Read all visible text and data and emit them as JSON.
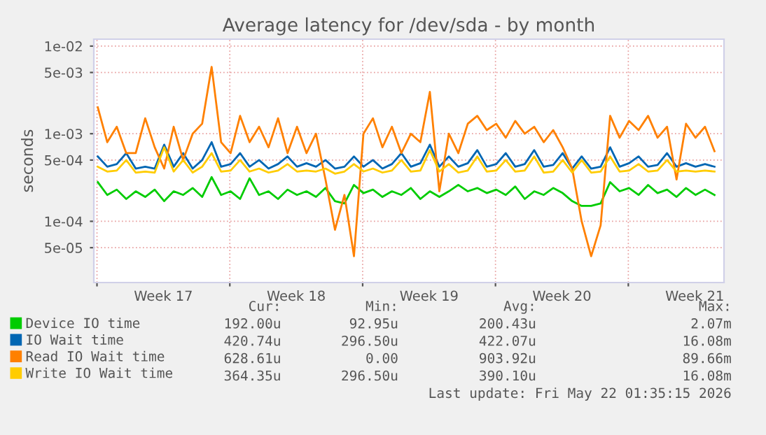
{
  "chart_data": {
    "type": "line",
    "title": "Average latency for /dev/sda - by month",
    "ylabel": "seconds",
    "x": [
      "2026-04-20T01:00",
      "2026-04-20T13:00",
      "2026-04-21T01:00",
      "2026-04-21T13:00",
      "2026-04-22T01:00",
      "2026-04-22T13:00",
      "2026-04-23T01:00",
      "2026-04-23T13:00",
      "2026-04-24T01:00",
      "2026-04-24T13:00",
      "2026-04-25T01:00",
      "2026-04-25T13:00",
      "2026-04-26T01:00",
      "2026-04-26T13:00",
      "2026-04-27T01:00",
      "2026-04-27T13:00",
      "2026-04-28T01:00",
      "2026-04-28T13:00",
      "2026-04-29T01:00",
      "2026-04-29T13:00",
      "2026-04-30T01:00",
      "2026-04-30T13:00",
      "2026-05-01T01:00",
      "2026-05-01T13:00",
      "2026-05-02T01:00",
      "2026-05-02T13:00",
      "2026-05-03T01:00",
      "2026-05-03T13:00",
      "2026-05-04T01:00",
      "2026-05-04T13:00",
      "2026-05-05T01:00",
      "2026-05-05T13:00",
      "2026-05-06T01:00",
      "2026-05-06T13:00",
      "2026-05-07T01:00",
      "2026-05-07T13:00",
      "2026-05-08T01:00",
      "2026-05-08T13:00",
      "2026-05-09T01:00",
      "2026-05-09T13:00",
      "2026-05-10T01:00",
      "2026-05-10T13:00",
      "2026-05-11T01:00",
      "2026-05-11T13:00",
      "2026-05-12T01:00",
      "2026-05-12T13:00",
      "2026-05-13T01:00",
      "2026-05-13T13:00",
      "2026-05-14T01:00",
      "2026-05-14T13:00",
      "2026-05-15T01:00",
      "2026-05-15T13:00",
      "2026-05-16T01:00",
      "2026-05-16T13:00",
      "2026-05-17T01:00",
      "2026-05-17T13:00",
      "2026-05-18T01:00",
      "2026-05-18T13:00",
      "2026-05-19T01:00",
      "2026-05-19T13:00",
      "2026-05-20T01:00",
      "2026-05-20T13:00",
      "2026-05-21T01:00",
      "2026-05-21T13:00",
      "2026-05-22T01:00",
      "2026-05-22T13:00"
    ],
    "series": [
      {
        "name": "Device IO time",
        "color": "#00cc00",
        "values": [
          0.00028,
          0.0002,
          0.00023,
          0.00018,
          0.00022,
          0.00019,
          0.00023,
          0.00017,
          0.00022,
          0.0002,
          0.00024,
          0.00019,
          0.00032,
          0.0002,
          0.00022,
          0.00018,
          0.00031,
          0.0002,
          0.00022,
          0.00018,
          0.00023,
          0.0002,
          0.00022,
          0.00019,
          0.00024,
          0.00017,
          0.00016,
          0.00026,
          0.00021,
          0.00023,
          0.00019,
          0.00022,
          0.0002,
          0.00024,
          0.00018,
          0.00022,
          0.00019,
          0.00022,
          0.00026,
          0.00022,
          0.00024,
          0.00021,
          0.00023,
          0.0002,
          0.00025,
          0.00018,
          0.00022,
          0.0002,
          0.00024,
          0.00021,
          0.00017,
          0.00015,
          0.00015,
          0.00016,
          0.00028,
          0.00022,
          0.00024,
          0.0002,
          0.00026,
          0.00021,
          0.00023,
          0.00019,
          0.00024,
          0.0002,
          0.00023,
          0.0002
        ]
      },
      {
        "name": "IO Wait time",
        "color": "#0066b3",
        "values": [
          0.00055,
          0.00042,
          0.00045,
          0.0006,
          0.0004,
          0.00042,
          0.0004,
          0.00075,
          0.00042,
          0.0006,
          0.0004,
          0.0005,
          0.0008,
          0.00042,
          0.00045,
          0.0006,
          0.00042,
          0.0005,
          0.0004,
          0.00045,
          0.00055,
          0.00042,
          0.00046,
          0.00042,
          0.0005,
          0.0004,
          0.00042,
          0.00055,
          0.00042,
          0.0005,
          0.0004,
          0.00045,
          0.0006,
          0.00042,
          0.00046,
          0.00075,
          0.00042,
          0.00055,
          0.00042,
          0.00046,
          0.00065,
          0.00042,
          0.00045,
          0.0006,
          0.00042,
          0.00045,
          0.00065,
          0.00042,
          0.00044,
          0.0006,
          0.0004,
          0.00055,
          0.0004,
          0.00042,
          0.0007,
          0.00042,
          0.00046,
          0.00055,
          0.00042,
          0.00044,
          0.0006,
          0.00042,
          0.00046,
          0.00042,
          0.00045,
          0.00042
        ]
      },
      {
        "name": "Read IO Wait time",
        "color": "#ff8000",
        "values": [
          0.002,
          0.0008,
          0.0012,
          0.0006,
          0.0006,
          0.0015,
          0.0007,
          0.0004,
          0.0012,
          0.0005,
          0.001,
          0.0013,
          0.0058,
          0.0008,
          0.0006,
          0.0016,
          0.0008,
          0.0012,
          0.0007,
          0.0015,
          0.0006,
          0.0012,
          0.0006,
          0.001,
          0.0003,
          8e-05,
          0.0002,
          4e-05,
          0.001,
          0.0015,
          0.0007,
          0.0012,
          0.0006,
          0.001,
          0.0008,
          0.003,
          0.00022,
          0.001,
          0.0006,
          0.0013,
          0.0016,
          0.0011,
          0.0013,
          0.0009,
          0.0014,
          0.001,
          0.0012,
          0.0008,
          0.0011,
          0.0007,
          0.0004,
          0.0001,
          4e-05,
          9e-05,
          0.0016,
          0.0009,
          0.0014,
          0.0011,
          0.0016,
          0.0009,
          0.0012,
          0.0003,
          0.0013,
          0.0009,
          0.0012,
          0.00063
        ]
      },
      {
        "name": "Write IO Wait time",
        "color": "#ffcc00",
        "values": [
          0.00042,
          0.00037,
          0.00038,
          0.0005,
          0.00036,
          0.00037,
          0.00036,
          0.0007,
          0.00037,
          0.0005,
          0.00036,
          0.00042,
          0.0006,
          0.00037,
          0.00038,
          0.0005,
          0.00037,
          0.0004,
          0.00036,
          0.00038,
          0.00045,
          0.00037,
          0.00038,
          0.00037,
          0.0004,
          0.00035,
          0.00037,
          0.00045,
          0.00037,
          0.0004,
          0.00036,
          0.00038,
          0.0005,
          0.00037,
          0.00038,
          0.00065,
          0.00037,
          0.00045,
          0.00036,
          0.00038,
          0.00055,
          0.00037,
          0.00038,
          0.0005,
          0.00037,
          0.00038,
          0.00055,
          0.00036,
          0.00037,
          0.0005,
          0.00036,
          0.0005,
          0.00036,
          0.00037,
          0.00055,
          0.00037,
          0.00038,
          0.00045,
          0.00037,
          0.00038,
          0.0005,
          0.00037,
          0.00038,
          0.00037,
          0.00038,
          0.00037
        ]
      }
    ],
    "log": "y",
    "xlim": [
      "2026-04-19T20:00",
      "2026-05-23T01:00"
    ],
    "ylim": [
      2e-05,
      0.012
    ],
    "xticks": [
      {
        "value": "2026-04-20",
        "label": null
      },
      {
        "value": "2026-04-23T12:00",
        "label": "Week 17"
      },
      {
        "value": "2026-04-27",
        "label": null
      },
      {
        "value": "2026-04-30T12:00",
        "label": "Week 18"
      },
      {
        "value": "2026-05-04",
        "label": null
      },
      {
        "value": "2026-05-07T12:00",
        "label": "Week 19"
      },
      {
        "value": "2026-05-11",
        "label": null
      },
      {
        "value": "2026-05-14T12:00",
        "label": "Week 20"
      },
      {
        "value": "2026-05-18",
        "label": null
      },
      {
        "value": "2026-05-21T12:00",
        "label": "Week 21"
      }
    ],
    "yticks": [
      {
        "value": 5e-05,
        "label": "5e-05"
      },
      {
        "value": 0.0001,
        "label": "1e-04"
      },
      {
        "value": 0.0005,
        "label": "5e-04"
      },
      {
        "value": 0.001,
        "label": "1e-03"
      },
      {
        "value": 0.005,
        "label": "5e-03"
      },
      {
        "value": 0.01,
        "label": "1e-02"
      }
    ],
    "grid": true,
    "legend": "bottom",
    "marker": "none",
    "line_style": "solid",
    "annotations": [
      "Cur:",
      "Min:",
      "Avg:",
      "Max:",
      "192.00u",
      "92.95u",
      "200.43u",
      "2.07m",
      "420.74u",
      "296.50u",
      "422.07u",
      "16.08m",
      "628.61u",
      "0.00",
      "903.92u",
      "89.66m",
      "364.35u",
      "296.50u",
      "390.10u",
      "16.08m",
      "Last update: Fri May 22 01:35:15 2026"
    ]
  }
}
